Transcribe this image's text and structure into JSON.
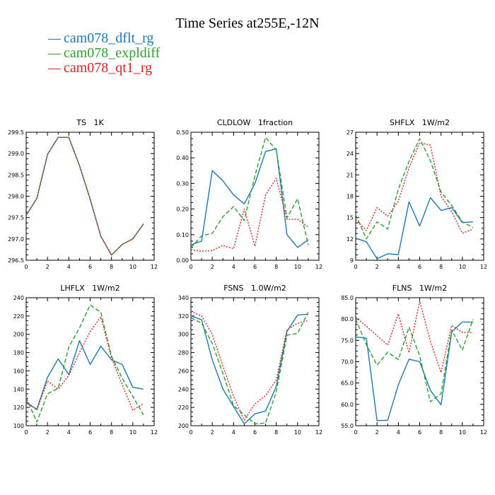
{
  "title": "Time Series at255E,-12N",
  "legend": [
    {
      "label": "cam078_dflt_rg",
      "color": "#1f77b4",
      "dash": "solid"
    },
    {
      "label": "cam078_expldiff",
      "color": "#2ca02c",
      "dash": "dashed"
    },
    {
      "label": "cam078_qt1_rg",
      "color": "#d62728",
      "dash": "dotted"
    }
  ],
  "chart_data": [
    {
      "type": "line",
      "title": "TS   1K",
      "xlim": [
        0,
        12
      ],
      "xticks": [
        0,
        2,
        4,
        6,
        8,
        10,
        12
      ],
      "xtick_labels": [
        "0",
        "2",
        "4",
        "6",
        "8",
        "10",
        "12"
      ],
      "ylim": [
        296.5,
        299.5
      ],
      "yticks": [
        296.5,
        297.0,
        297.5,
        298.0,
        298.5,
        299.0,
        299.5
      ],
      "ytick_labels": [
        "296.5",
        "297.0",
        "297.5",
        "298.0",
        "298.5",
        "299.0",
        "299.5"
      ],
      "x": [
        0,
        1,
        2,
        3,
        4,
        5,
        6,
        7,
        8,
        9,
        10,
        11
      ],
      "series": [
        {
          "name": "cam078_dflt_rg",
          "values": [
            297.55,
            297.95,
            298.98,
            299.38,
            299.38,
            298.72,
            297.93,
            297.06,
            296.62,
            296.87,
            297.0,
            297.35
          ]
        },
        {
          "name": "cam078_expldiff",
          "values": [
            297.55,
            297.95,
            298.98,
            299.38,
            299.38,
            298.72,
            297.93,
            297.06,
            296.62,
            296.87,
            297.0,
            297.35
          ]
        },
        {
          "name": "cam078_qt1_rg",
          "values": [
            297.55,
            297.95,
            298.98,
            299.38,
            299.38,
            298.72,
            297.93,
            297.06,
            296.62,
            296.87,
            297.0,
            297.35
          ]
        }
      ]
    },
    {
      "type": "line",
      "title": "CLDLOW   1fraction",
      "xlim": [
        0,
        12
      ],
      "xticks": [
        0,
        2,
        4,
        6,
        8,
        10,
        12
      ],
      "xtick_labels": [
        "0",
        "2",
        "4",
        "6",
        "8",
        "10",
        "12"
      ],
      "ylim": [
        0.0,
        0.5
      ],
      "yticks": [
        0.0,
        0.1,
        0.2,
        0.3,
        0.4,
        0.5
      ],
      "ytick_labels": [
        "0.00",
        "0.10",
        "0.20",
        "0.30",
        "0.40",
        "0.50"
      ],
      "x": [
        0,
        1,
        2,
        3,
        4,
        5,
        6,
        7,
        8,
        9,
        10,
        11
      ],
      "series": [
        {
          "name": "cam078_dflt_rg",
          "values": [
            0.06,
            0.075,
            0.35,
            0.31,
            0.255,
            0.22,
            0.3,
            0.425,
            0.435,
            0.1,
            0.05,
            0.08
          ]
        },
        {
          "name": "cam078_expldiff",
          "values": [
            0.05,
            0.095,
            0.105,
            0.17,
            0.21,
            0.155,
            0.33,
            0.48,
            0.43,
            0.165,
            0.24,
            0.06
          ]
        },
        {
          "name": "cam078_qt1_rg",
          "values": [
            0.04,
            0.035,
            0.038,
            0.058,
            0.045,
            0.2,
            0.055,
            0.255,
            0.32,
            0.16,
            0.16,
            0.13
          ]
        }
      ]
    },
    {
      "type": "line",
      "title": "SHFLX   1W/m2",
      "xlim": [
        0,
        12
      ],
      "xticks": [
        0,
        2,
        4,
        6,
        8,
        10,
        12
      ],
      "xtick_labels": [
        "0",
        "2",
        "4",
        "6",
        "8",
        "10",
        "12"
      ],
      "ylim": [
        9,
        27
      ],
      "yticks": [
        9,
        12,
        15,
        18,
        21,
        24,
        27
      ],
      "ytick_labels": [
        "9",
        "12",
        "15",
        "18",
        "21",
        "24",
        "27"
      ],
      "x": [
        0,
        1,
        2,
        3,
        4,
        5,
        6,
        7,
        8,
        9,
        10,
        11
      ],
      "series": [
        {
          "name": "cam078_dflt_rg",
          "values": [
            12.1,
            11.6,
            9.2,
            9.9,
            9.8,
            17.2,
            13.8,
            17.8,
            16.0,
            16.4,
            14.3,
            14.4
          ]
        },
        {
          "name": "cam078_expldiff",
          "values": [
            15.4,
            12.0,
            14.4,
            13.4,
            19.0,
            22.9,
            26.1,
            23.0,
            18.6,
            16.7,
            14.4,
            13.6
          ]
        },
        {
          "name": "cam078_qt1_rg",
          "values": [
            14.7,
            13.2,
            16.4,
            15.2,
            17.3,
            22.0,
            25.5,
            25.2,
            18.0,
            15.8,
            12.8,
            13.4
          ]
        }
      ]
    },
    {
      "type": "line",
      "title": "LHFLX   1W/m2",
      "xlim": [
        0,
        12
      ],
      "xticks": [
        0,
        2,
        4,
        6,
        8,
        10,
        12
      ],
      "xtick_labels": [
        "0",
        "2",
        "4",
        "6",
        "8",
        "10",
        "12"
      ],
      "ylim": [
        100,
        240
      ],
      "yticks": [
        100,
        120,
        140,
        160,
        180,
        200,
        220,
        240
      ],
      "ytick_labels": [
        "100",
        "120",
        "140",
        "160",
        "180",
        "200",
        "220",
        "240"
      ],
      "x": [
        0,
        1,
        2,
        3,
        4,
        5,
        6,
        7,
        8,
        9,
        10,
        11
      ],
      "series": [
        {
          "name": "cam078_dflt_rg",
          "values": [
            125,
            118,
            153,
            173,
            156,
            193,
            167,
            187,
            172,
            167,
            142,
            140
          ]
        },
        {
          "name": "cam078_expldiff",
          "values": [
            131,
            104,
            135,
            141,
            186,
            207,
            232,
            224,
            176,
            152,
            132,
            112
          ]
        },
        {
          "name": "cam078_qt1_rg",
          "values": [
            127,
            117,
            149,
            140,
            155,
            180,
            203,
            219,
            174,
            145,
            117,
            124
          ]
        }
      ]
    },
    {
      "type": "line",
      "title": "FSNS   1.0W/m2",
      "xlim": [
        0,
        12
      ],
      "xticks": [
        0,
        2,
        4,
        6,
        8,
        10,
        12
      ],
      "xtick_labels": [
        "0",
        "2",
        "4",
        "6",
        "8",
        "10",
        "12"
      ],
      "ylim": [
        200,
        340
      ],
      "yticks": [
        200,
        220,
        240,
        260,
        280,
        300,
        320,
        340
      ],
      "ytick_labels": [
        "200",
        "220",
        "240",
        "260",
        "280",
        "300",
        "320",
        "340"
      ],
      "x": [
        0,
        1,
        2,
        3,
        4,
        5,
        6,
        7,
        8,
        9,
        10,
        11
      ],
      "series": [
        {
          "name": "cam078_dflt_rg",
          "values": [
            320,
            316,
            272,
            240,
            221,
            202,
            213,
            216,
            243,
            303,
            321,
            322
          ]
        },
        {
          "name": "cam078_expldiff",
          "values": [
            318,
            312,
            290,
            257,
            222,
            212,
            202,
            203,
            237,
            299,
            301,
            324
          ]
        },
        {
          "name": "cam078_qt1_rg",
          "values": [
            325,
            320,
            300,
            265,
            232,
            206,
            224,
            233,
            250,
            305,
            312,
            315
          ]
        }
      ]
    },
    {
      "type": "line",
      "title": "FLNS   1W/m2",
      "xlim": [
        0,
        12
      ],
      "xticks": [
        0,
        2,
        4,
        6,
        8,
        10,
        12
      ],
      "xtick_labels": [
        "0",
        "2",
        "4",
        "6",
        "8",
        "10",
        "12"
      ],
      "ylim": [
        55,
        85
      ],
      "yticks": [
        55.0,
        60.0,
        65.0,
        70.0,
        75.0,
        80.0,
        85.0
      ],
      "ytick_labels": [
        "55.0",
        "60.0",
        "65.0",
        "70.0",
        "75.0",
        "80.0",
        "85.0"
      ],
      "x": [
        0,
        1,
        2,
        3,
        4,
        5,
        6,
        7,
        8,
        9,
        10,
        11
      ],
      "series": [
        {
          "name": "cam078_dflt_rg",
          "values": [
            75.8,
            75.5,
            56.2,
            56.3,
            64.6,
            70.6,
            70.0,
            63.3,
            59.9,
            77.0,
            79.3,
            79.3
          ]
        },
        {
          "name": "cam078_expldiff",
          "values": [
            80.0,
            74.0,
            69.2,
            72.2,
            70.5,
            78.1,
            71.4,
            60.6,
            62.5,
            77.4,
            72.7,
            79.9
          ]
        },
        {
          "name": "cam078_qt1_rg",
          "values": [
            80.4,
            78.3,
            76.1,
            73.9,
            81.2,
            72.1,
            84.2,
            74.8,
            67.5,
            78.5,
            76.9,
            76.8
          ]
        }
      ]
    }
  ]
}
